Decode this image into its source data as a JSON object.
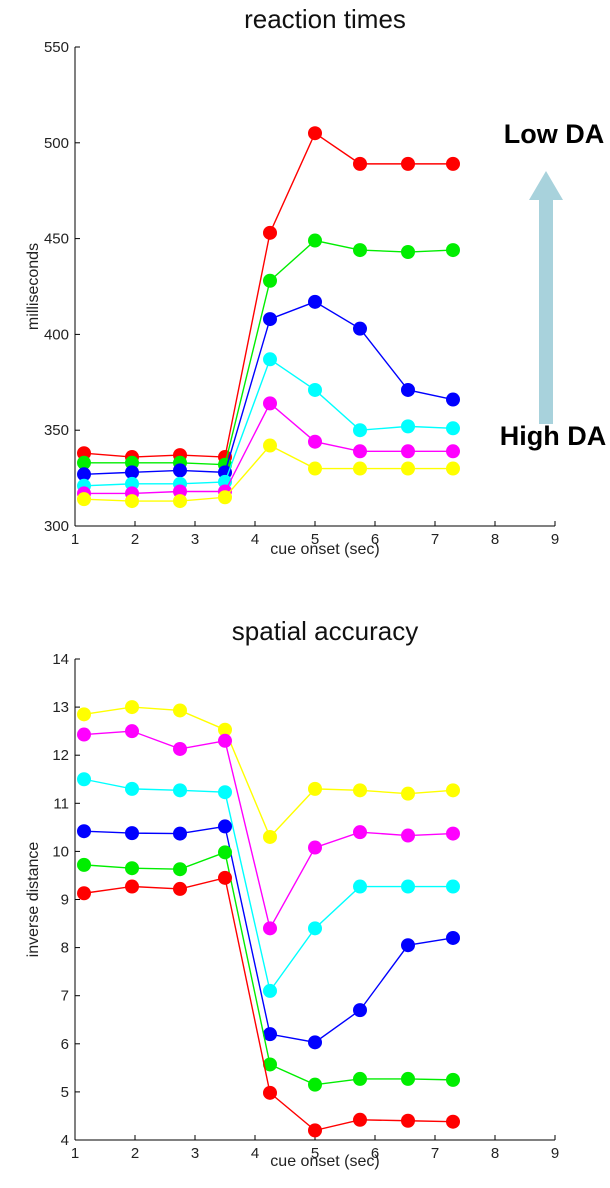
{
  "chart_data": [
    {
      "type": "line",
      "title": "reaction times",
      "xlabel": "cue onset (sec)",
      "ylabel": "milliseconds",
      "xlim": [
        1,
        9
      ],
      "ylim": [
        300,
        550
      ],
      "xticks": [
        "1",
        "2",
        "3",
        "4",
        "5",
        "6",
        "7",
        "8",
        "9"
      ],
      "yticks": [
        "300",
        "350",
        "400",
        "450",
        "500",
        "550"
      ],
      "x": [
        1.15,
        1.95,
        2.75,
        3.5,
        4.25,
        5.0,
        5.75,
        6.55,
        7.3
      ],
      "series": [
        {
          "color": "#ff0000",
          "values": [
            338,
            336,
            337,
            336,
            453,
            505,
            489,
            489,
            489
          ]
        },
        {
          "color": "#00ee00",
          "values": [
            333,
            333,
            333,
            332,
            428,
            449,
            444,
            443,
            444
          ]
        },
        {
          "color": "#0000ff",
          "values": [
            327,
            328,
            329,
            328,
            408,
            417,
            403,
            371,
            366
          ]
        },
        {
          "color": "#00ffff",
          "values": [
            321,
            322,
            322,
            323,
            387,
            371,
            350,
            352,
            351
          ]
        },
        {
          "color": "#ff00ff",
          "values": [
            317,
            317,
            318,
            318,
            364,
            344,
            339,
            339,
            339
          ]
        },
        {
          "color": "#ffff00",
          "values": [
            314,
            313,
            313,
            315,
            342,
            330,
            330,
            330,
            330
          ]
        }
      ],
      "annotations": {
        "top": "Low DA",
        "bottom": "High DA"
      },
      "arrow_color": "#a8d2dc"
    },
    {
      "type": "line",
      "title": "spatial accuracy",
      "xlabel": "cue onset (sec)",
      "ylabel": "inverse distance",
      "xlim": [
        1,
        9
      ],
      "ylim": [
        4,
        14
      ],
      "xticks": [
        "1",
        "2",
        "3",
        "4",
        "5",
        "6",
        "7",
        "8",
        "9"
      ],
      "yticks": [
        "4",
        "5",
        "6",
        "7",
        "8",
        "9",
        "10",
        "11",
        "12",
        "13",
        "14"
      ],
      "x": [
        1.15,
        1.95,
        2.75,
        3.5,
        4.25,
        5.0,
        5.75,
        6.55,
        7.3
      ],
      "series": [
        {
          "color": "#ffff00",
          "values": [
            12.85,
            13.0,
            12.93,
            12.53,
            10.3,
            11.3,
            11.27,
            11.2,
            11.27
          ]
        },
        {
          "color": "#ff00ff",
          "values": [
            12.43,
            12.5,
            12.13,
            12.3,
            8.4,
            10.08,
            10.4,
            10.33,
            10.37
          ]
        },
        {
          "color": "#00ffff",
          "values": [
            11.5,
            11.3,
            11.27,
            11.23,
            7.1,
            8.4,
            9.27,
            9.27,
            9.27
          ]
        },
        {
          "color": "#0000ff",
          "values": [
            10.42,
            10.38,
            10.37,
            10.52,
            6.2,
            6.03,
            6.7,
            8.05,
            8.2
          ]
        },
        {
          "color": "#00ee00",
          "values": [
            9.72,
            9.65,
            9.63,
            9.98,
            5.57,
            5.15,
            5.27,
            5.27,
            5.25
          ]
        },
        {
          "color": "#ff0000",
          "values": [
            9.13,
            9.27,
            9.22,
            9.45,
            4.98,
            4.2,
            4.42,
            4.4,
            4.38
          ]
        }
      ]
    }
  ]
}
